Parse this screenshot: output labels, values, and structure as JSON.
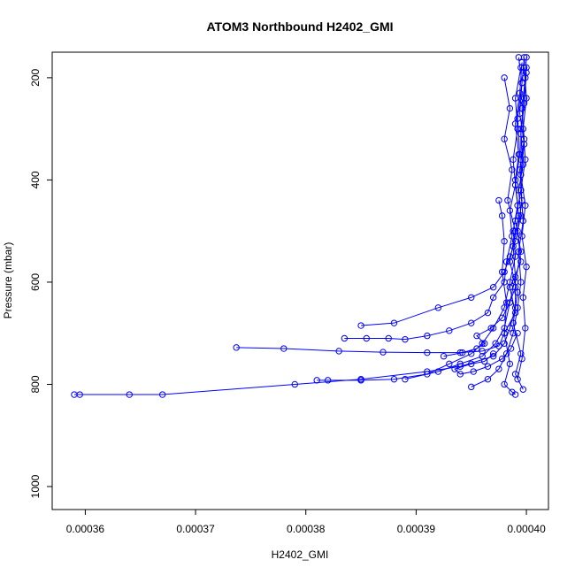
{
  "chart_data": {
    "type": "line",
    "title": "ATOM3 Northbound H2402_GMI",
    "xlabel": "H2402_GMI",
    "ylabel": "Pressure (mbar)",
    "x_ticks": [
      "0.00036",
      "0.00037",
      "0.00038",
      "0.00039",
      "0.00040"
    ],
    "x_tick_values": [
      0.00036,
      0.00037,
      0.00038,
      0.00039,
      0.0004
    ],
    "y_ticks": [
      "200",
      "400",
      "600",
      "800",
      "1000"
    ],
    "y_tick_values": [
      200,
      400,
      600,
      800,
      1000
    ],
    "xlim": [
      0.000357,
      0.000402
    ],
    "ylim": [
      1045,
      150
    ],
    "y_reversed": true,
    "markers": "open-circle",
    "grid": false,
    "color": "#0000ff",
    "series": [
      {
        "values": [
          [
            0.000359,
            820
          ],
          [
            0.0003595,
            820
          ],
          [
            0.000364,
            820
          ],
          [
            0.000367,
            820
          ],
          [
            0.000379,
            800
          ],
          [
            0.000385,
            790
          ],
          [
            0.000391,
            775
          ],
          [
            0.000394,
            765
          ],
          [
            0.000397,
            745
          ],
          [
            0.000398,
            720
          ],
          [
            0.0003985,
            690
          ],
          [
            0.000399,
            650
          ],
          [
            0.000399,
            600
          ],
          [
            0.0003995,
            540
          ],
          [
            0.000399,
            480
          ],
          [
            0.0003995,
            420
          ],
          [
            0.0003995,
            360
          ],
          [
            0.0003995,
            300
          ],
          [
            0.0003998,
            240
          ],
          [
            0.0004,
            180
          ]
        ]
      },
      {
        "values": [
          [
            0.0003737,
            728
          ],
          [
            0.000378,
            730
          ],
          [
            0.000383,
            735
          ],
          [
            0.000387,
            737
          ],
          [
            0.000391,
            738
          ],
          [
            0.000394,
            738
          ],
          [
            0.000396,
            735
          ],
          [
            0.0003975,
            725
          ],
          [
            0.000398,
            700
          ],
          [
            0.000399,
            660
          ],
          [
            0.0003985,
            610
          ],
          [
            0.0003995,
            560
          ],
          [
            0.0003992,
            500
          ],
          [
            0.0003996,
            440
          ],
          [
            0.0003994,
            380
          ],
          [
            0.0003998,
            320
          ],
          [
            0.0003996,
            260
          ],
          [
            0.0003999,
            200
          ],
          [
            0.0004,
            160
          ]
        ]
      },
      {
        "values": [
          [
            0.000381,
            792
          ],
          [
            0.000382,
            792
          ],
          [
            0.000385,
            792
          ],
          [
            0.000388,
            790
          ],
          [
            0.000391,
            780
          ],
          [
            0.000393,
            760
          ],
          [
            0.000395,
            740
          ],
          [
            0.000396,
            720
          ],
          [
            0.000397,
            690
          ],
          [
            0.000398,
            650
          ],
          [
            0.0003985,
            600
          ],
          [
            0.000399,
            550
          ],
          [
            0.0003988,
            500
          ],
          [
            0.0003992,
            450
          ],
          [
            0.000399,
            400
          ],
          [
            0.0003993,
            350
          ],
          [
            0.000399,
            290
          ],
          [
            0.0003994,
            230
          ],
          [
            0.0003996,
            170
          ]
        ]
      },
      {
        "values": [
          [
            0.000385,
            685
          ],
          [
            0.000388,
            680
          ],
          [
            0.000392,
            650
          ],
          [
            0.000395,
            630
          ],
          [
            0.000397,
            610
          ],
          [
            0.000398,
            580
          ],
          [
            0.0003985,
            550
          ],
          [
            0.000399,
            520
          ],
          [
            0.0003995,
            470
          ],
          [
            0.0003993,
            420
          ],
          [
            0.0003997,
            370
          ],
          [
            0.0003995,
            310
          ],
          [
            0.0003998,
            250
          ],
          [
            0.0004,
            190
          ]
        ]
      },
      {
        "values": [
          [
            0.0003835,
            710
          ],
          [
            0.0003855,
            710
          ],
          [
            0.0003875,
            710
          ],
          [
            0.000389,
            712
          ],
          [
            0.000391,
            705
          ],
          [
            0.000393,
            695
          ],
          [
            0.000395,
            680
          ],
          [
            0.0003965,
            660
          ],
          [
            0.000397,
            630
          ],
          [
            0.000398,
            600
          ],
          [
            0.0003982,
            560
          ],
          [
            0.0003987,
            510
          ],
          [
            0.0003985,
            460
          ],
          [
            0.000399,
            410
          ],
          [
            0.0003988,
            360
          ],
          [
            0.0003992,
            300
          ],
          [
            0.000399,
            240
          ],
          [
            0.0003995,
            180
          ]
        ]
      },
      {
        "values": [
          [
            0.000389,
            790
          ],
          [
            0.000392,
            775
          ],
          [
            0.000394,
            760
          ],
          [
            0.000396,
            745
          ],
          [
            0.0003972,
            720
          ],
          [
            0.000398,
            690
          ],
          [
            0.0003985,
            640
          ],
          [
            0.000399,
            590
          ],
          [
            0.0003988,
            530
          ],
          [
            0.0003993,
            470
          ],
          [
            0.000399,
            410
          ],
          [
            0.0003994,
            350
          ],
          [
            0.0003992,
            280
          ],
          [
            0.0003996,
            210
          ],
          [
            0.0003998,
            160
          ]
        ]
      },
      {
        "values": [
          [
            0.0003975,
            440
          ],
          [
            0.0003978,
            470
          ],
          [
            0.000398,
            520
          ],
          [
            0.0003978,
            580
          ],
          [
            0.0003982,
            640
          ],
          [
            0.000398,
            700
          ],
          [
            0.0003985,
            760
          ],
          [
            0.000398,
            800
          ],
          [
            0.0003987,
            815
          ],
          [
            0.000399,
            820
          ]
        ]
      },
      {
        "values": [
          [
            0.000395,
            805
          ],
          [
            0.0003965,
            790
          ],
          [
            0.0003975,
            770
          ],
          [
            0.0003982,
            740
          ],
          [
            0.0003988,
            700
          ],
          [
            0.0003992,
            650
          ],
          [
            0.0003995,
            600
          ],
          [
            0.0003993,
            540
          ],
          [
            0.0003997,
            480
          ],
          [
            0.0003995,
            420
          ],
          [
            0.0003999,
            360
          ],
          [
            0.0003997,
            300
          ],
          [
            0.0004,
            240
          ],
          [
            0.0003998,
            180
          ]
        ]
      },
      {
        "values": [
          [
            0.000398,
            200
          ],
          [
            0.0003985,
            260
          ],
          [
            0.000398,
            320
          ],
          [
            0.0003987,
            380
          ],
          [
            0.0003983,
            440
          ],
          [
            0.000399,
            500
          ],
          [
            0.0003985,
            560
          ],
          [
            0.0003992,
            620
          ],
          [
            0.0003988,
            680
          ],
          [
            0.0003995,
            740
          ],
          [
            0.000399,
            780
          ],
          [
            0.0003997,
            810
          ]
        ]
      },
      {
        "values": [
          [
            0.0003993,
            160
          ],
          [
            0.0003996,
            210
          ],
          [
            0.0003994,
            270
          ],
          [
            0.0003998,
            330
          ],
          [
            0.0003995,
            390
          ],
          [
            0.0003999,
            450
          ],
          [
            0.0003996,
            510
          ],
          [
            0.0004,
            570
          ],
          [
            0.0003997,
            630
          ],
          [
            0.0003999,
            690
          ],
          [
            0.0003996,
            750
          ],
          [
            0.0003992,
            790
          ]
        ]
      },
      {
        "values": [
          [
            0.000397,
            740
          ],
          [
            0.0003962,
            755
          ],
          [
            0.000395,
            760
          ],
          [
            0.0003935,
            770
          ],
          [
            0.000394,
            780
          ],
          [
            0.0003952,
            775
          ],
          [
            0.0003965,
            765
          ],
          [
            0.0003978,
            750
          ],
          [
            0.0003986,
            730
          ],
          [
            0.0003992,
            700
          ]
        ]
      },
      {
        "values": [
          [
            0.0003925,
            745
          ],
          [
            0.0003942,
            738
          ],
          [
            0.0003955,
            730
          ],
          [
            0.0003962,
            720
          ],
          [
            0.0003955,
            705
          ],
          [
            0.0003968,
            690
          ],
          [
            0.0003978,
            670
          ],
          [
            0.0003985,
            640
          ],
          [
            0.000399,
            610
          ]
        ]
      }
    ]
  }
}
